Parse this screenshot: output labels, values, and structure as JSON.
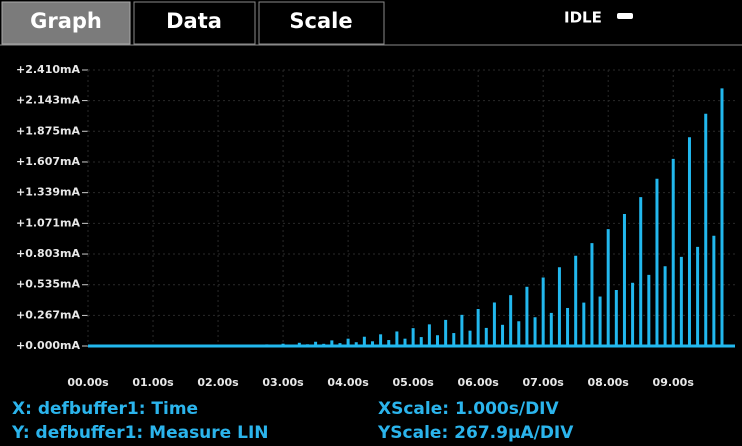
{
  "tabs": [
    "Graph",
    "Data",
    "Scale"
  ],
  "status": "IDLE",
  "chart_data": {
    "type": "spike",
    "grid": true,
    "xlim": [
      0,
      9.95
    ],
    "ylim": [
      0,
      2.41
    ],
    "xticks": [
      {
        "value": 0,
        "label": "00.00s"
      },
      {
        "value": 1,
        "label": "01.00s"
      },
      {
        "value": 2,
        "label": "02.00s"
      },
      {
        "value": 3,
        "label": "03.00s"
      },
      {
        "value": 4,
        "label": "04.00s"
      },
      {
        "value": 5,
        "label": "05.00s"
      },
      {
        "value": 6,
        "label": "06.00s"
      },
      {
        "value": 7,
        "label": "07.00s"
      },
      {
        "value": 8,
        "label": "08.00s"
      },
      {
        "value": 9,
        "label": "09.00s"
      }
    ],
    "yticks": [
      {
        "value": 0,
        "label": "+0.000mA"
      },
      {
        "value": 0.267,
        "label": "+0.267mA"
      },
      {
        "value": 0.535,
        "label": "+0.535mA"
      },
      {
        "value": 0.803,
        "label": "+0.803mA"
      },
      {
        "value": 1.071,
        "label": "+1.071mA"
      },
      {
        "value": 1.339,
        "label": "+1.339mA"
      },
      {
        "value": 1.607,
        "label": "+1.607mA"
      },
      {
        "value": 1.875,
        "label": "+1.875mA"
      },
      {
        "value": 2.143,
        "label": "+2.143mA"
      },
      {
        "value": 2.41,
        "label": "+2.410mA"
      }
    ],
    "x_label": "X: defbuffer1: Time",
    "y_label": "Y: defbuffer1: Measure LIN",
    "x_scale": "XScale: 1.000s/DIV",
    "y_scale": "YScale: 267.9μA/DIV",
    "series": [
      {
        "color": "#22b8ee",
        "x": [
          0,
          0.25,
          0.5,
          0.75,
          1,
          1.25,
          1.5,
          1.75,
          2,
          2.25,
          2.5,
          2.75,
          3,
          3.25,
          3.5,
          3.75,
          4,
          4.25,
          4.5,
          4.75,
          5,
          5.25,
          5.5,
          5.75,
          6,
          6.25,
          6.5,
          6.75,
          7,
          7.25,
          7.5,
          7.75,
          8,
          8.25,
          8.5,
          8.75,
          9,
          9.25,
          9.5,
          9.75
        ],
        "values": [
          0,
          0,
          0,
          0,
          0,
          0.001,
          0.001,
          0.002,
          0.004,
          0.006,
          0.01,
          0.014,
          0.02,
          0.028,
          0.037,
          0.049,
          0.064,
          0.081,
          0.102,
          0.127,
          0.156,
          0.189,
          0.228,
          0.272,
          0.323,
          0.38,
          0.444,
          0.517,
          0.598,
          0.688,
          0.788,
          0.898,
          1.02,
          1.153,
          1.3,
          1.46,
          1.634,
          1.823,
          2.028,
          2.25
        ]
      },
      {
        "color": "#22b8ee",
        "x": [
          0.125,
          0.375,
          0.625,
          0.875,
          1.125,
          1.375,
          1.625,
          1.875,
          2.125,
          2.375,
          2.625,
          2.875,
          3.125,
          3.375,
          3.625,
          3.875,
          4.125,
          4.375,
          4.625,
          4.875,
          5.125,
          5.375,
          5.625,
          5.875,
          6.125,
          6.375,
          6.625,
          6.875,
          7.125,
          7.375,
          7.625,
          7.875,
          8.125,
          8.375,
          8.625,
          8.875,
          9.125,
          9.375,
          9.625
        ],
        "values": [
          0,
          0,
          0,
          0,
          0,
          0,
          0.001,
          0.001,
          0.002,
          0.004,
          0.005,
          0.008,
          0.011,
          0.015,
          0.019,
          0.025,
          0.033,
          0.041,
          0.052,
          0.064,
          0.078,
          0.094,
          0.113,
          0.134,
          0.158,
          0.185,
          0.216,
          0.251,
          0.289,
          0.332,
          0.379,
          0.432,
          0.489,
          0.552,
          0.621,
          0.696,
          0.778,
          0.866,
          0.963
        ]
      }
    ]
  }
}
